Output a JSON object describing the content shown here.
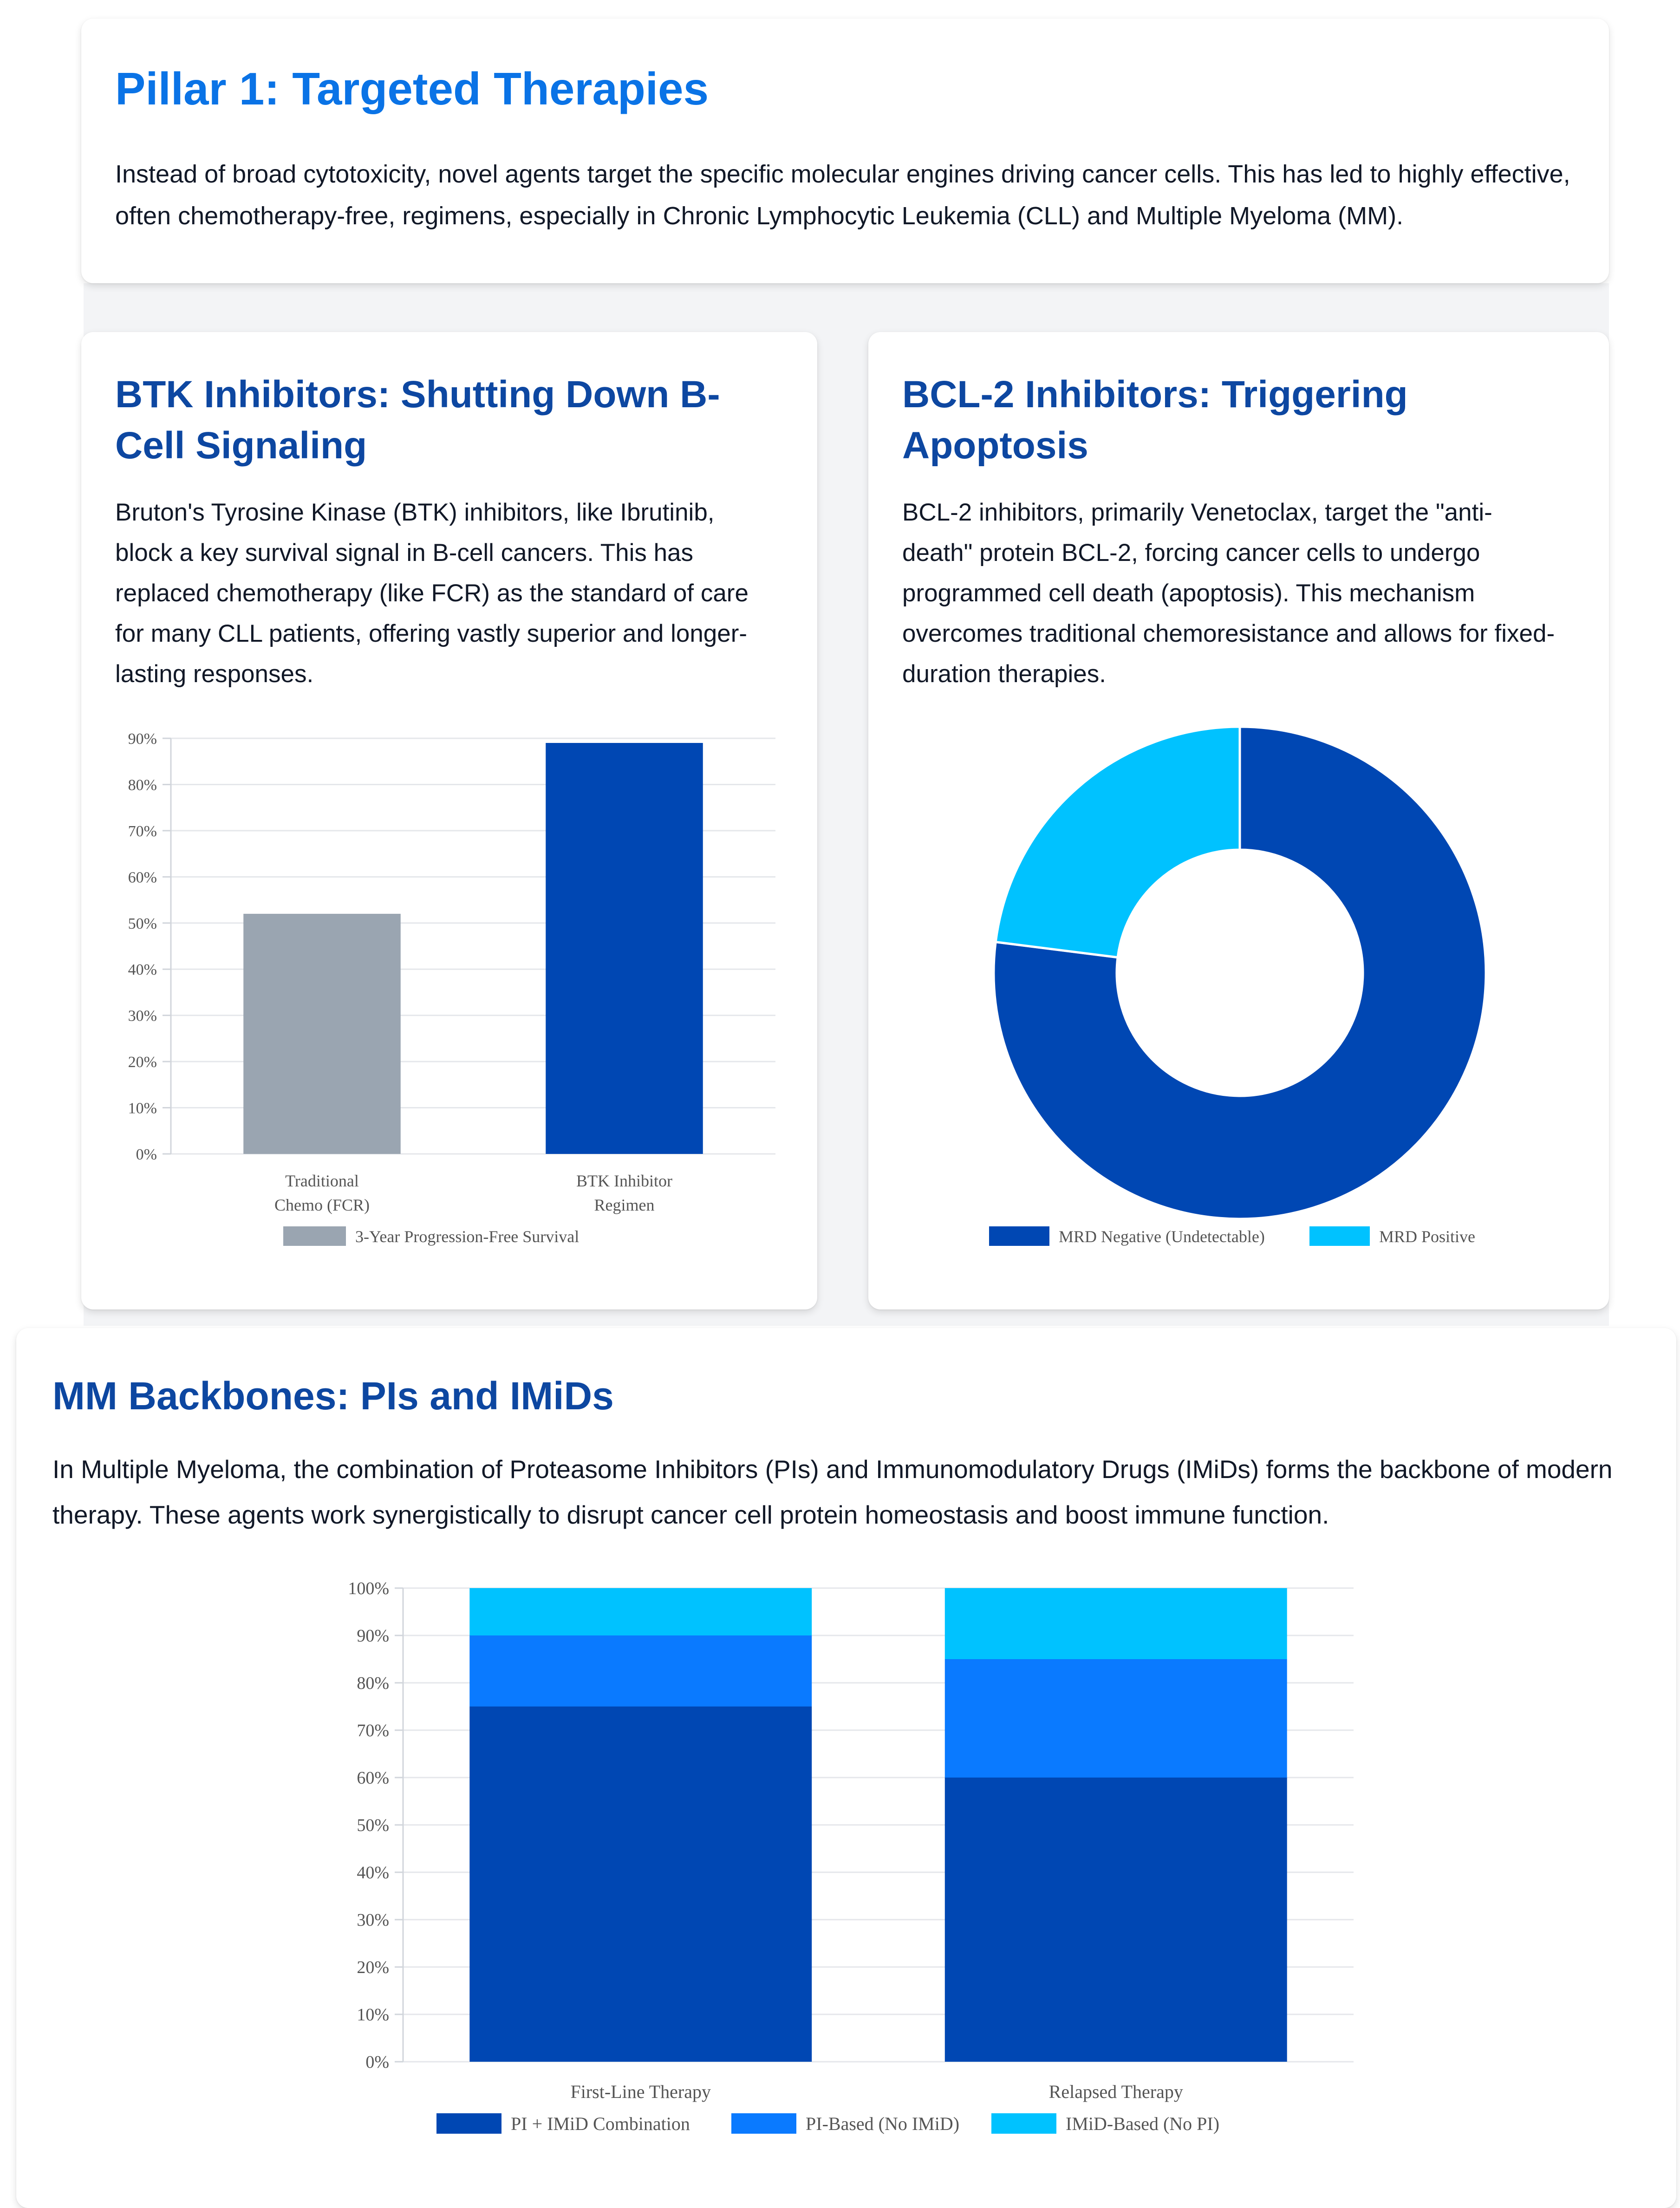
{
  "intro": {
    "title": "Pillar 1: Targeted Therapies",
    "body": "Instead of broad cytotoxicity, novel agents target the specific molecular engines driving cancer cells. This has led to highly effective, often chemotherapy-free, regimens, especially in Chronic Lymphocytic Leukemia (CLL) and Multiple Myeloma (MM)."
  },
  "btk": {
    "title": "BTK Inhibitors: Shutting Down B-Cell Signaling",
    "body": "Bruton's Tyrosine Kinase (BTK) inhibitors, like Ibrutinib, block a key survival signal in B-cell cancers. This has replaced chemotherapy (like FCR) as the standard of care for many CLL patients, offering vastly superior and longer-lasting responses."
  },
  "bcl": {
    "title": "BCL-2 Inhibitors: Triggering Apoptosis",
    "body": "BCL-2 inhibitors, primarily Venetoclax, target the \"anti-death\" protein BCL-2, forcing cancer cells to undergo programmed cell death (apoptosis). This mechanism overcomes traditional chemoresistance and allows for fixed-duration therapies."
  },
  "mm": {
    "title": "MM Backbones: PIs and IMiDs",
    "body": "In Multiple Myeloma, the combination of Proteasome Inhibitors (PIs) and Immunomodulatory Drugs (IMiDs) forms the backbone of modern therapy. These agents work synergistically to disrupt cancer cell protein homeostasis and boost immune function."
  },
  "chart_data": [
    {
      "type": "bar",
      "categories": [
        [
          "Traditional",
          "Chemo (FCR)"
        ],
        [
          "BTK Inhibitor",
          "Regimen"
        ]
      ],
      "series": [
        {
          "name": "3-Year Progression-Free Survival",
          "values": [
            52,
            89
          ],
          "colors": [
            "#9aa5b1",
            "#0047b3"
          ]
        }
      ],
      "ylim": [
        0,
        90
      ],
      "yticks": [
        0,
        10,
        20,
        30,
        40,
        50,
        60,
        70,
        80,
        90
      ],
      "ytick_suffix": "%",
      "grid": true,
      "legend": "bottom"
    },
    {
      "type": "pie",
      "donut": true,
      "labels": [
        "MRD Negative (Undetectable)",
        "MRD Positive"
      ],
      "values": [
        77,
        23
      ],
      "colors": [
        "#0047b3",
        "#00c2ff"
      ],
      "legend": "bottom"
    },
    {
      "type": "bar",
      "stacked": true,
      "categories": [
        "First-Line Therapy",
        "Relapsed Therapy"
      ],
      "series": [
        {
          "name": "PI + IMiD Combination",
          "values": [
            75,
            60
          ],
          "color": "#0047b3"
        },
        {
          "name": "PI-Based (No IMiD)",
          "values": [
            15,
            25
          ],
          "color": "#0a7aff"
        },
        {
          "name": "IMiD-Based (No PI)",
          "values": [
            10,
            15
          ],
          "color": "#00c2ff"
        }
      ],
      "ylim": [
        0,
        100
      ],
      "yticks": [
        0,
        10,
        20,
        30,
        40,
        50,
        60,
        70,
        80,
        90,
        100
      ],
      "ytick_suffix": "%",
      "grid": true,
      "legend": "bottom"
    }
  ]
}
